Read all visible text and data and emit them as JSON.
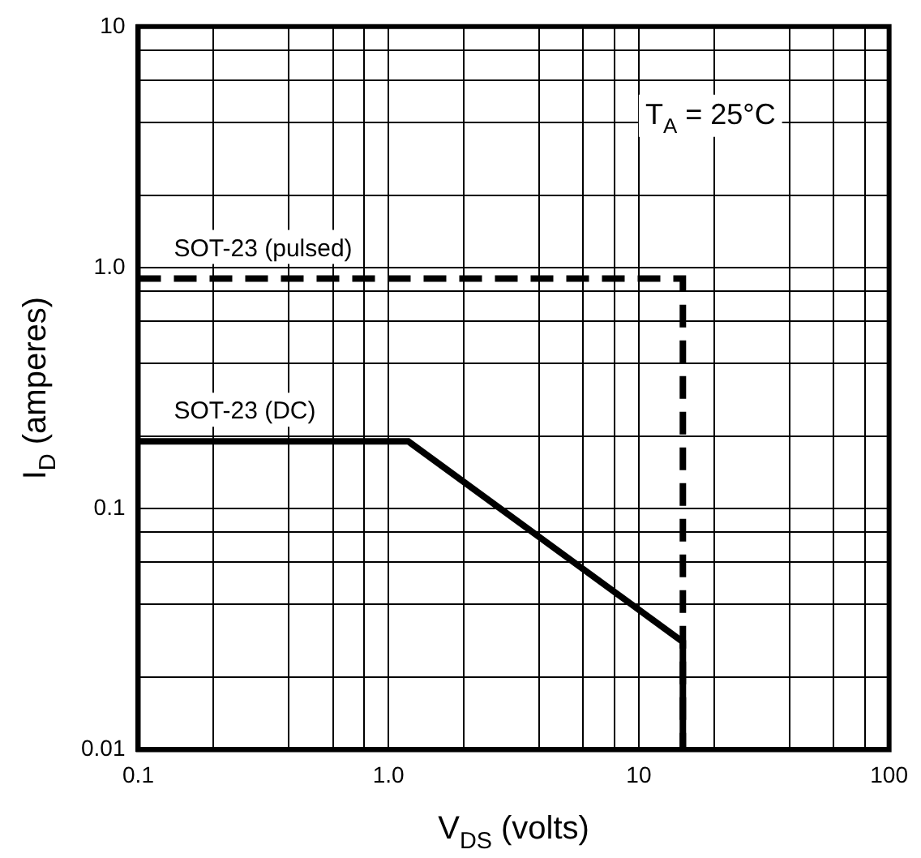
{
  "chart_data": {
    "type": "line",
    "xlabel": "V$_{DS}$ (volts)",
    "ylabel": "I$_{D}$ (amperes)",
    "log": "xy",
    "grid": true,
    "legend": false,
    "marker": "none",
    "xlim": [
      0.1,
      100
    ],
    "ylim": [
      0.01,
      10
    ],
    "xticks": [
      0.1,
      {
        "value": 0.2,
        "label": null
      },
      {
        "value": 0.4,
        "label": null
      },
      {
        "value": 0.6,
        "label": null
      },
      {
        "value": 0.8,
        "label": null
      },
      {
        "value": 1,
        "label": "1.0"
      },
      {
        "value": 2,
        "label": null
      },
      {
        "value": 4,
        "label": null
      },
      {
        "value": 6,
        "label": null
      },
      {
        "value": 8,
        "label": null
      },
      10,
      {
        "value": 20,
        "label": null
      },
      {
        "value": 40,
        "label": null
      },
      {
        "value": 60,
        "label": null
      },
      {
        "value": 80,
        "label": null
      },
      100
    ],
    "yticks": [
      0.01,
      {
        "value": 0.02,
        "label": null
      },
      {
        "value": 0.04,
        "label": null
      },
      {
        "value": 0.06,
        "label": null
      },
      {
        "value": 0.08,
        "label": null
      },
      0.1,
      {
        "value": 0.2,
        "label": null
      },
      {
        "value": 0.4,
        "label": null
      },
      {
        "value": 0.6,
        "label": null
      },
      {
        "value": 0.8,
        "label": null
      },
      {
        "value": 1,
        "label": "1.0"
      },
      {
        "value": 2,
        "label": null
      },
      {
        "value": 4,
        "label": null
      },
      {
        "value": 6,
        "label": null
      },
      {
        "value": 8,
        "label": null
      },
      10
    ],
    "series": [
      {
        "name": "SOT-23 (pulsed)",
        "color": "#000000",
        "line_style": "dashed",
        "x": [
          0.1,
          15,
          15
        ],
        "values": [
          0.9,
          0.9,
          0.01
        ]
      },
      {
        "name": "SOT-23 (DC)",
        "color": "#000000",
        "line_style": "solid",
        "x": [
          0.1,
          1.2,
          15,
          15
        ],
        "values": [
          0.19,
          0.19,
          0.028,
          0.01
        ]
      }
    ],
    "annotations": [
      "T$_{A}$ = 25°C"
    ]
  }
}
